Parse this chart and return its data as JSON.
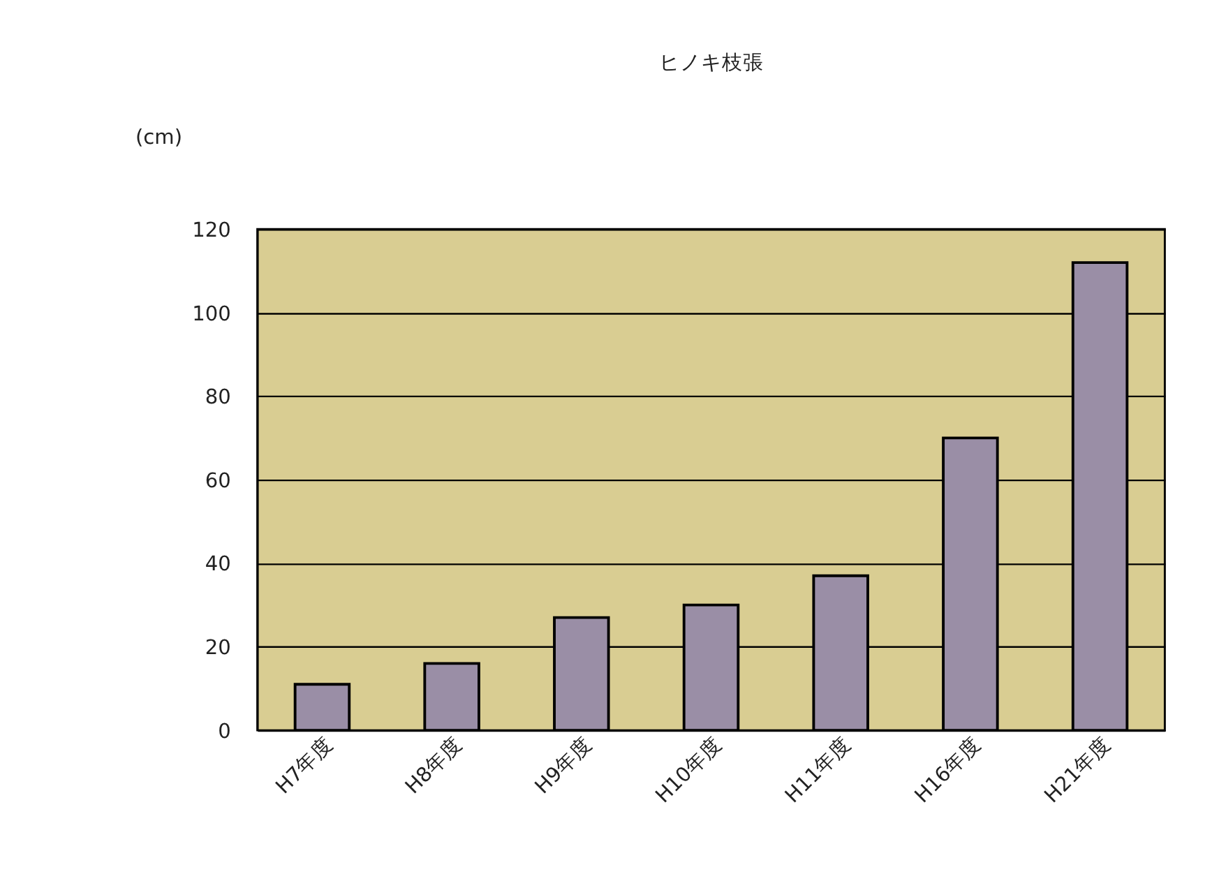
{
  "chart_data": {
    "type": "bar",
    "title": "ヒノキ枝張",
    "ylabel": "(cm)",
    "categories": [
      "H7年度",
      "H8年度",
      "H9年度",
      "H10年度",
      "H11年度",
      "H16年度",
      "H21年度"
    ],
    "values": [
      11,
      16,
      27,
      30,
      37,
      70,
      112
    ],
    "color": "#9a8ea6",
    "ylim": [
      0,
      120
    ],
    "yticks": [
      0,
      20,
      40,
      60,
      80,
      100,
      120
    ],
    "grid": "y"
  }
}
